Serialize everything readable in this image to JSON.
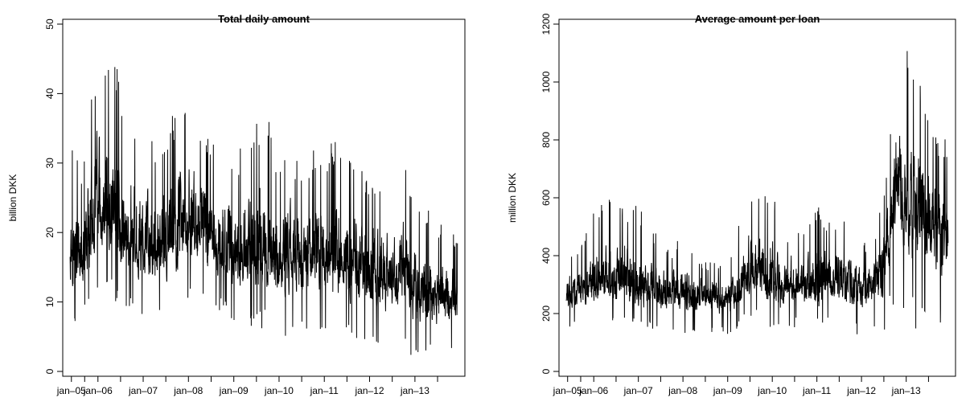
{
  "chart_data": [
    {
      "type": "line",
      "title": "Total daily amount",
      "xlabel": "",
      "ylabel": "billion DKK",
      "x_range": [
        "2005-05-01",
        "2013-12-31"
      ],
      "ylim": [
        0,
        50
      ],
      "yticks": [
        0,
        10,
        20,
        30,
        40,
        50
      ],
      "xticks": [
        {
          "date": "2005-06-01",
          "label": "jan–05"
        },
        {
          "date": "2006-01-01",
          "label": "jan–06"
        },
        {
          "date": "2007-01-01",
          "label": "jan–07"
        },
        {
          "date": "2008-01-01",
          "label": "jan–08"
        },
        {
          "date": "2009-01-01",
          "label": "jan–09"
        },
        {
          "date": "2010-01-01",
          "label": "jan–10"
        },
        {
          "date": "2011-01-01",
          "label": "jan–11"
        },
        {
          "date": "2012-01-01",
          "label": "jan–12"
        },
        {
          "date": "2013-01-01",
          "label": "jan–13"
        }
      ],
      "grid": false,
      "series": [
        {
          "x": [
            "2005-06-01",
            "2005-09-01",
            "2006-01-01",
            "2006-04-01",
            "2006-07-01",
            "2006-10-01",
            "2007-01-01",
            "2007-04-01",
            "2007-07-01",
            "2007-10-01",
            "2008-01-01",
            "2008-04-01",
            "2008-07-01",
            "2008-10-01",
            "2009-01-01",
            "2009-04-01",
            "2009-07-01",
            "2009-10-01",
            "2010-01-01",
            "2010-04-01",
            "2010-07-01",
            "2010-10-01",
            "2011-01-01",
            "2011-04-01",
            "2011-07-01",
            "2011-10-01",
            "2012-01-01",
            "2012-04-01",
            "2012-07-01",
            "2012-10-01",
            "2013-01-01",
            "2013-04-01",
            "2013-07-01",
            "2013-10-01"
          ],
          "y": [
            18,
            16,
            24,
            22,
            21,
            19,
            18,
            17,
            18,
            19,
            21,
            20,
            19,
            18,
            17,
            16,
            17,
            18,
            16,
            17,
            16,
            17,
            16,
            16,
            17,
            15,
            14,
            14,
            14,
            14,
            12,
            11,
            11,
            11
          ],
          "min": [
            7,
            7,
            10,
            11,
            9,
            8,
            8,
            8,
            8,
            8,
            9,
            9,
            9,
            8,
            7,
            6,
            6,
            6,
            3.5,
            6,
            5,
            6,
            5,
            5,
            5,
            4,
            3.5,
            3,
            3,
            2.5,
            2,
            2,
            2,
            2
          ],
          "max": [
            32,
            30,
            47,
            49,
            42,
            37,
            35,
            33,
            34,
            39,
            41,
            36,
            33,
            33,
            31,
            33,
            36,
            39,
            30,
            32,
            30,
            32,
            30,
            35,
            32,
            29,
            29,
            29,
            28,
            30,
            26,
            24,
            22,
            20
          ]
        }
      ]
    },
    {
      "type": "line",
      "title": "Average amount per loan",
      "xlabel": "",
      "ylabel": "million DKK",
      "x_range": [
        "2005-05-01",
        "2013-12-31"
      ],
      "ylim": [
        0,
        1200
      ],
      "yticks": [
        0,
        200,
        400,
        600,
        800,
        1000,
        1200
      ],
      "xticks": [
        {
          "date": "2005-06-01",
          "label": "jan–05"
        },
        {
          "date": "2006-01-01",
          "label": "jan–06"
        },
        {
          "date": "2007-01-01",
          "label": "jan–07"
        },
        {
          "date": "2008-01-01",
          "label": "jan–08"
        },
        {
          "date": "2009-01-01",
          "label": "jan–09"
        },
        {
          "date": "2010-01-01",
          "label": "jan–10"
        },
        {
          "date": "2011-01-01",
          "label": "jan–11"
        },
        {
          "date": "2012-01-01",
          "label": "jan–12"
        },
        {
          "date": "2013-01-01",
          "label": "jan–13"
        }
      ],
      "grid": false,
      "series": [
        {
          "x": [
            "2005-06-01",
            "2005-09-01",
            "2006-01-01",
            "2006-04-01",
            "2006-07-01",
            "2006-10-01",
            "2007-01-01",
            "2007-04-01",
            "2007-07-01",
            "2007-10-01",
            "2008-01-01",
            "2008-04-01",
            "2008-07-01",
            "2008-10-01",
            "2009-01-01",
            "2009-04-01",
            "2009-07-01",
            "2009-10-01",
            "2010-01-01",
            "2010-04-01",
            "2010-07-01",
            "2010-10-01",
            "2011-01-01",
            "2011-04-01",
            "2011-07-01",
            "2011-10-01",
            "2012-01-01",
            "2012-04-01",
            "2012-07-01",
            "2012-10-01",
            "2013-01-01",
            "2013-04-01",
            "2013-07-01",
            "2013-10-01"
          ],
          "y": [
            260,
            270,
            300,
            310,
            300,
            295,
            290,
            285,
            280,
            275,
            270,
            265,
            260,
            255,
            250,
            300,
            340,
            350,
            300,
            290,
            300,
            305,
            310,
            315,
            320,
            310,
            300,
            305,
            320,
            600,
            620,
            560,
            520,
            500
          ],
          "min": [
            140,
            160,
            180,
            190,
            170,
            160,
            150,
            140,
            140,
            140,
            130,
            130,
            140,
            130,
            120,
            150,
            180,
            170,
            110,
            150,
            150,
            150,
            150,
            160,
            150,
            130,
            120,
            140,
            130,
            250,
            180,
            140,
            160,
            150
          ],
          "max": [
            410,
            430,
            560,
            610,
            580,
            550,
            600,
            470,
            490,
            420,
            480,
            400,
            380,
            380,
            350,
            520,
            640,
            600,
            660,
            450,
            520,
            470,
            580,
            520,
            550,
            480,
            450,
            440,
            660,
            1060,
            1150,
            1040,
            900,
            810
          ]
        }
      ]
    }
  ]
}
